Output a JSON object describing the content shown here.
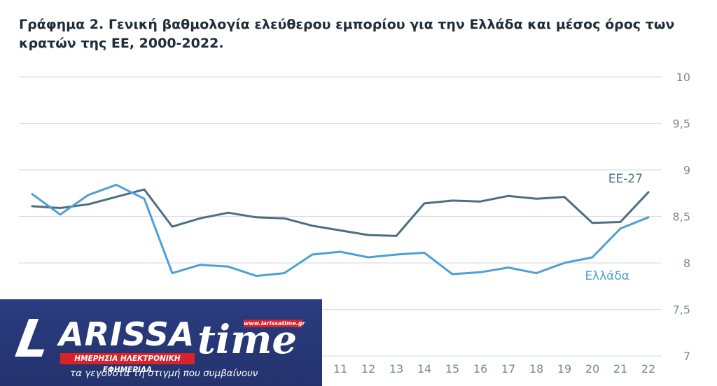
{
  "chart_data": {
    "type": "line",
    "title": "Γράφημα 2. Γενική βαθμολογία ελεύθερου εμπορίου για την Ελλάδα και μέσος όρος των κρατών της ΕΕ, 2000-2022.",
    "x": [
      0,
      1,
      2,
      3,
      4,
      5,
      6,
      7,
      8,
      9,
      10,
      11,
      12,
      13,
      14,
      15,
      16,
      17,
      18,
      19,
      20,
      21,
      22
    ],
    "x_tick_labels": [
      "11",
      "12",
      "13",
      "14",
      "15",
      "16",
      "17",
      "18",
      "19",
      "20",
      "21",
      "22"
    ],
    "x_tick_values": [
      11,
      12,
      13,
      14,
      15,
      16,
      17,
      18,
      19,
      20,
      21,
      22
    ],
    "y_ticks": [
      "10",
      "9,5",
      "9",
      "8,5",
      "8",
      "7,5",
      "7"
    ],
    "y_tick_values": [
      10,
      9.5,
      9,
      8.5,
      8,
      7.5,
      7
    ],
    "ylim": [
      7,
      10
    ],
    "grid": true,
    "series": [
      {
        "name": "ΕΕ-27",
        "color": "#4a6e82",
        "values": [
          8.61,
          8.59,
          8.63,
          8.71,
          8.79,
          8.39,
          8.48,
          8.54,
          8.49,
          8.48,
          8.4,
          8.35,
          8.3,
          8.29,
          8.64,
          8.67,
          8.66,
          8.72,
          8.69,
          8.71,
          8.43,
          8.44,
          8.76
        ]
      },
      {
        "name": "Ελλάδα",
        "color": "#4ea0d4",
        "values": [
          8.74,
          8.52,
          8.73,
          8.84,
          8.69,
          7.89,
          7.98,
          7.96,
          7.86,
          7.89,
          8.09,
          8.12,
          8.06,
          8.09,
          8.11,
          7.88,
          7.9,
          7.95,
          7.89,
          8.0,
          8.06,
          8.37,
          8.49
        ]
      }
    ]
  },
  "banner": {
    "logo_l": "L",
    "logo_arissa": "ARISSA",
    "logo_time": "time",
    "website": "www.larissatime.gr",
    "tagline_red": "ΗΜΕΡΗΣΙΑ ΗΛΕΚΤΡΟΝΙΚΗ ΕΦΗΜΕΡΙΔΑ",
    "slogan": "τα γεγονότα τη στιγμή που συμβαίνουν",
    "bg_color": "#24336e",
    "accent_color": "#d8232a"
  }
}
